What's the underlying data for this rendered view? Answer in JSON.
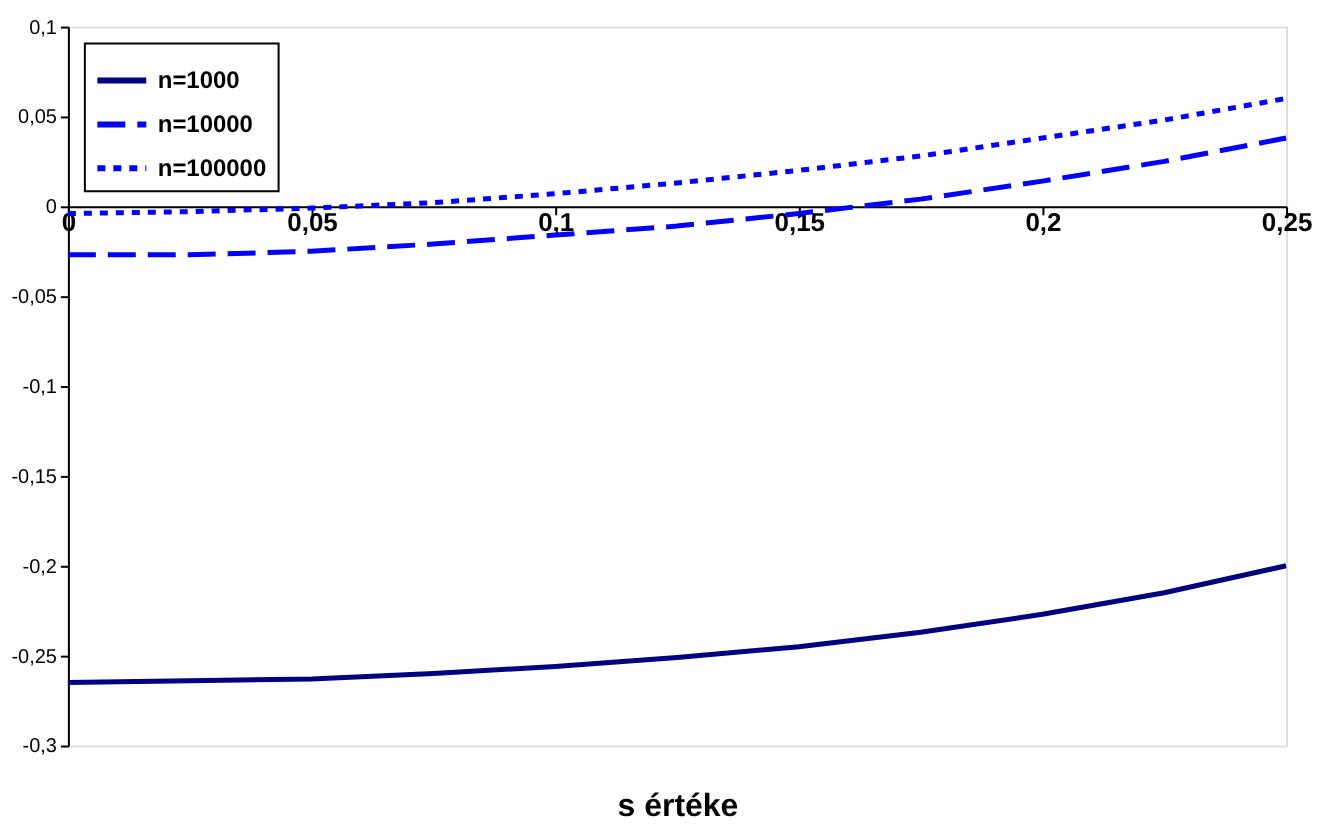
{
  "chart_data": {
    "type": "line",
    "xlabel": "s értéke",
    "x": [
      0,
      0.025,
      0.05,
      0.075,
      0.1,
      0.125,
      0.15,
      0.175,
      0.2,
      0.225,
      0.25
    ],
    "series": [
      {
        "name": "n=1000",
        "color": "#000080",
        "line_style": "solid",
        "values": [
          -0.265,
          -0.264,
          -0.263,
          -0.26,
          -0.256,
          -0.251,
          -0.245,
          -0.237,
          -0.227,
          -0.215,
          -0.2
        ]
      },
      {
        "name": "n=10000",
        "color": "#0000ff",
        "line_style": "dashed",
        "values": [
          -0.027,
          -0.027,
          -0.025,
          -0.021,
          -0.016,
          -0.011,
          -0.004,
          0.004,
          0.014,
          0.025,
          0.038
        ]
      },
      {
        "name": "n=100000",
        "color": "#0000ff",
        "line_style": "dotted",
        "values": [
          -0.004,
          -0.003,
          -0.001,
          0.002,
          0.007,
          0.013,
          0.02,
          0.028,
          0.038,
          0.048,
          0.06
        ]
      }
    ],
    "xlim": [
      0,
      0.25
    ],
    "xticks": [
      0,
      {
        "value": 0.05,
        "label": "0,05"
      },
      {
        "value": 0.1,
        "label": "0,1"
      },
      {
        "value": 0.15,
        "label": "0,15"
      },
      {
        "value": 0.2,
        "label": "0,2"
      },
      {
        "value": 0.25,
        "label": "0,25"
      }
    ],
    "ylim": [
      -0.3,
      0.1
    ],
    "yticks": [
      {
        "value": -0.3,
        "label": "-0,3"
      },
      {
        "value": -0.25,
        "label": "-0,25"
      },
      {
        "value": -0.2,
        "label": "-0,2"
      },
      {
        "value": -0.15,
        "label": "-0,15"
      },
      {
        "value": -0.1,
        "label": "-0,1"
      },
      {
        "value": -0.05,
        "label": "-0,05"
      },
      0,
      {
        "value": 0.05,
        "label": "0,05"
      },
      {
        "value": 0.1,
        "label": "0,1"
      }
    ],
    "grid": false,
    "legend": "top left",
    "marker": "none"
  }
}
